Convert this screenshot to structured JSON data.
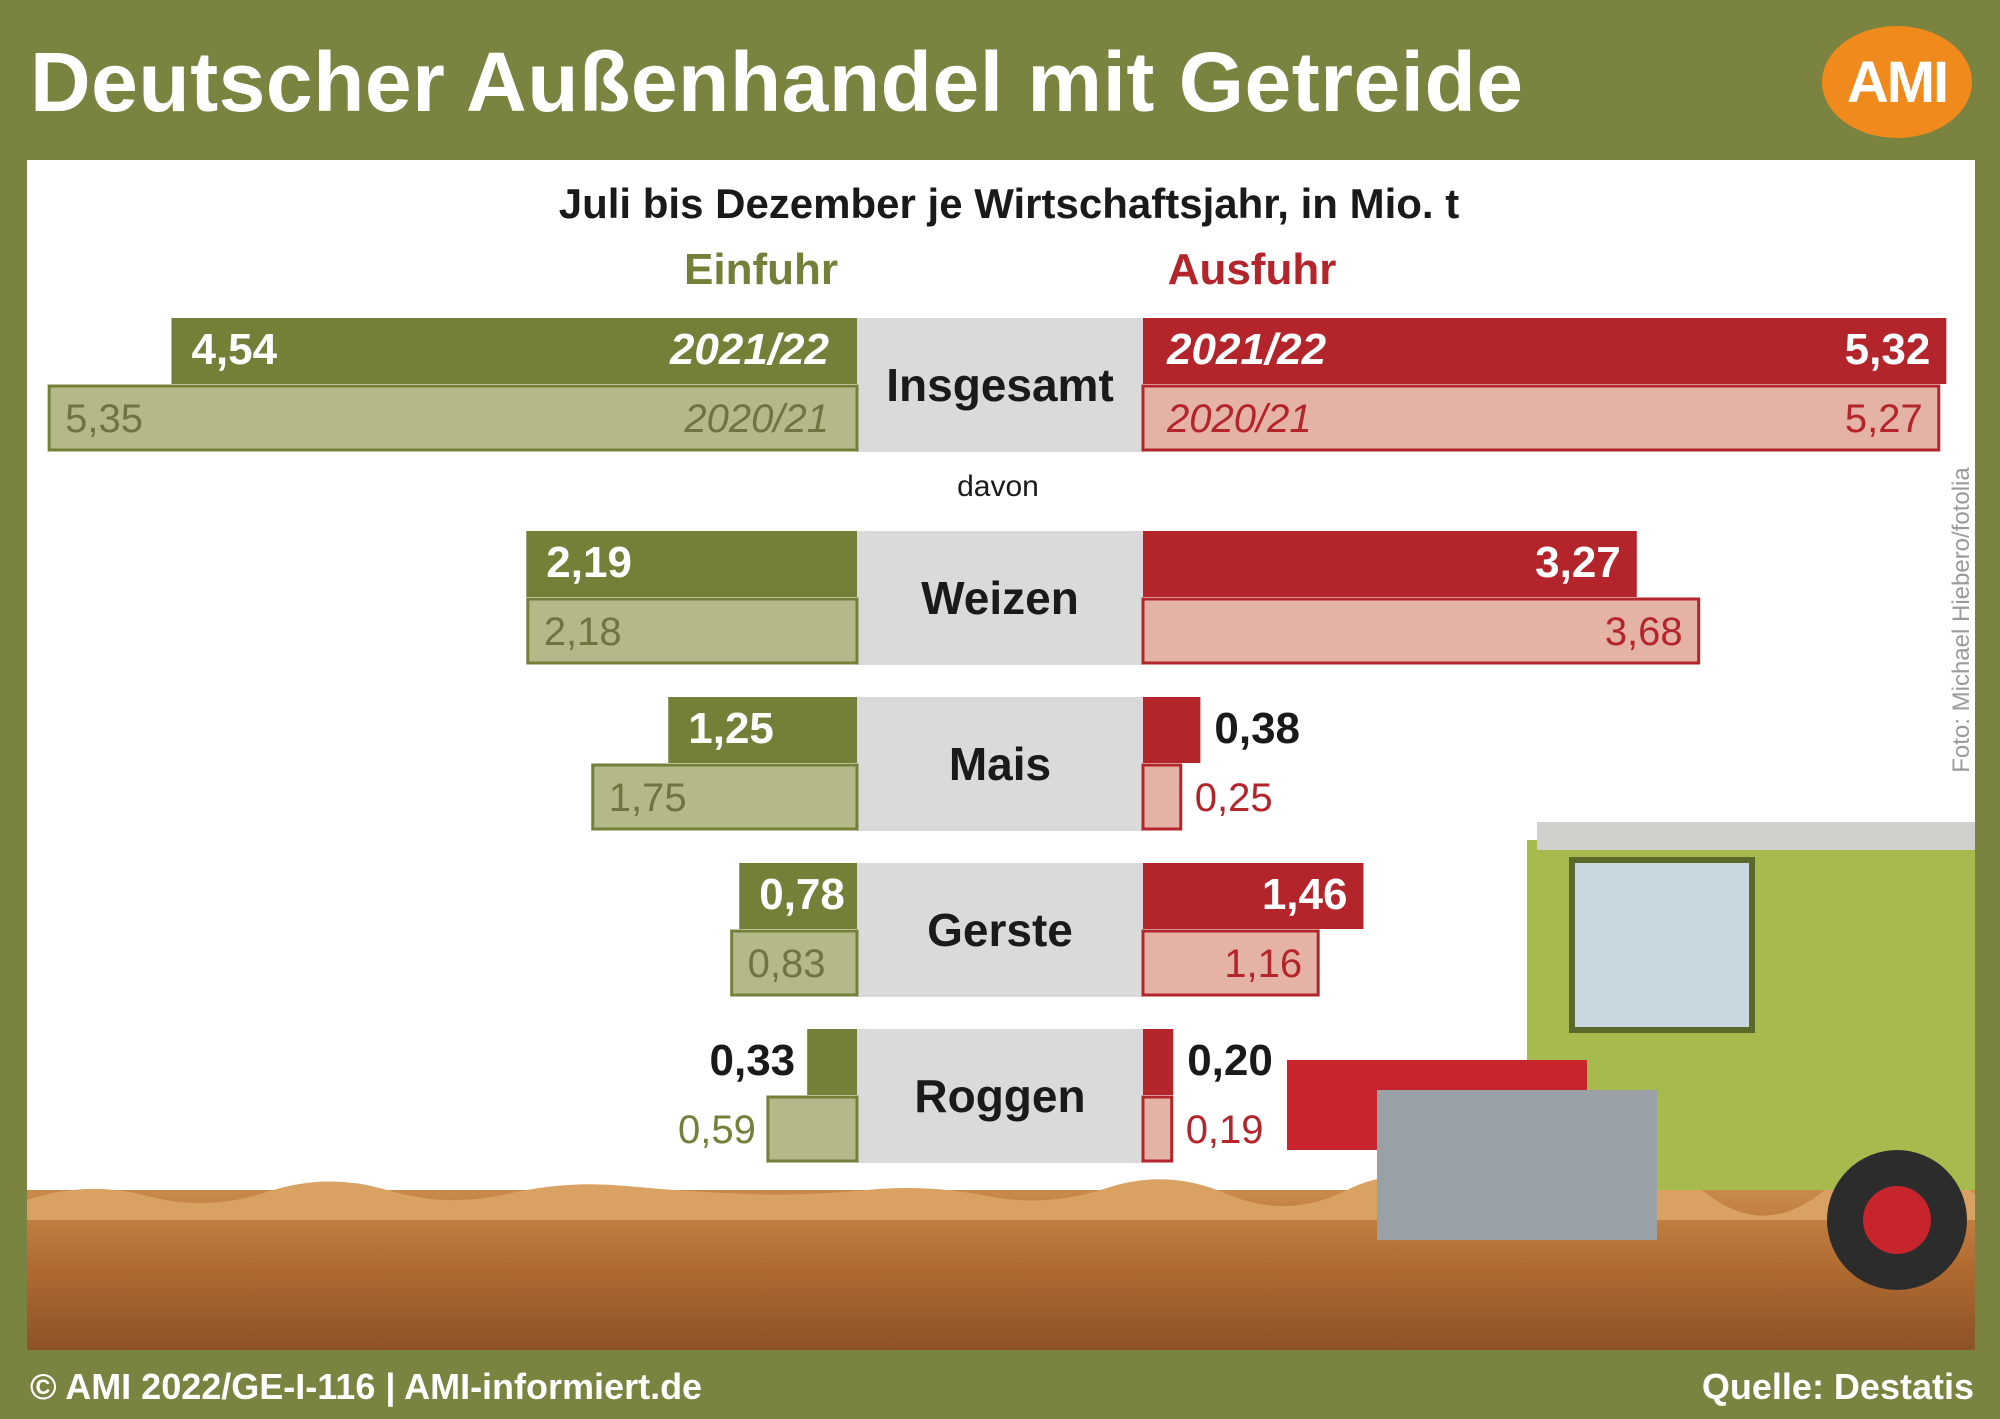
{
  "header": {
    "title": "Deutscher Außenhandel mit Getreide",
    "logo": "AMI"
  },
  "footer": {
    "copyright": "© AMI 2022/GE-I-116 | AMI-informiert.de",
    "source": "Quelle: Destatis"
  },
  "photo_credit": "Foto: Michael Hiebero/fotolia",
  "colors": {
    "background_green": "#7a8340",
    "import_current": "#747f38",
    "import_prior": "#b5b98a",
    "export_current": "#b3242b",
    "export_prior": "#e5b3a5",
    "category_band": "#dadada",
    "accent_orange": "#f08a1c"
  },
  "chart_data": {
    "type": "bar",
    "orientation": "horizontal-butterfly",
    "subtitle": "Juli bis Dezember je Wirtschaftsjahr, in Mio. t",
    "left_heading": "Einfuhr",
    "right_heading": "Ausfuhr",
    "sub_label": "davon",
    "series_labels": {
      "current": "2021/22",
      "prior": "2020/21"
    },
    "categories": [
      "Insgesamt",
      "Weizen",
      "Mais",
      "Gerste",
      "Roggen"
    ],
    "einfuhr": {
      "current": [
        4.54,
        2.19,
        1.25,
        0.78,
        0.33
      ],
      "prior": [
        5.35,
        2.18,
        1.75,
        0.83,
        0.59
      ],
      "current_labels": [
        "4,54",
        "2,19",
        "1,25",
        "0,78",
        "0,33"
      ],
      "prior_labels": [
        "5,35",
        "2,18",
        "1,75",
        "0,83",
        "0,59"
      ]
    },
    "ausfuhr": {
      "current": [
        5.32,
        3.27,
        0.38,
        1.46,
        0.2
      ],
      "prior": [
        5.27,
        3.68,
        0.25,
        1.16,
        0.19
      ],
      "current_labels": [
        "5,32",
        "3,27",
        "0,38",
        "1,46",
        "0,20"
      ],
      "prior_labels": [
        "5,27",
        "3,68",
        "0,25",
        "1,16",
        "0,19"
      ]
    }
  }
}
